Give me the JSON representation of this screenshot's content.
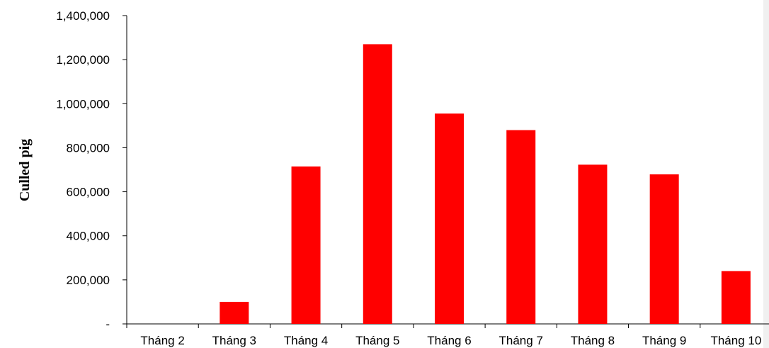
{
  "chart_data": {
    "type": "bar",
    "title": "",
    "xlabel": "",
    "ylabel": "Culled pig",
    "categories": [
      "Tháng 2",
      "Tháng 3",
      "Tháng 4",
      "Tháng 5",
      "Tháng 6",
      "Tháng 7",
      "Tháng 8",
      "Tháng 9",
      "Tháng 10"
    ],
    "values": [
      0,
      100000,
      715000,
      1270000,
      955000,
      880000,
      723000,
      679000,
      240000
    ],
    "ylim": [
      0,
      1400000
    ],
    "yticks": [
      0,
      200000,
      400000,
      600000,
      800000,
      1000000,
      1200000,
      1400000
    ],
    "ytick_labels": [
      "-",
      "200,000",
      "400,000",
      "600,000",
      "800,000",
      "1,000,000",
      "1,200,000",
      "1,400,000"
    ],
    "bar_color": "#ff0000",
    "grid": false,
    "legend": "none"
  }
}
